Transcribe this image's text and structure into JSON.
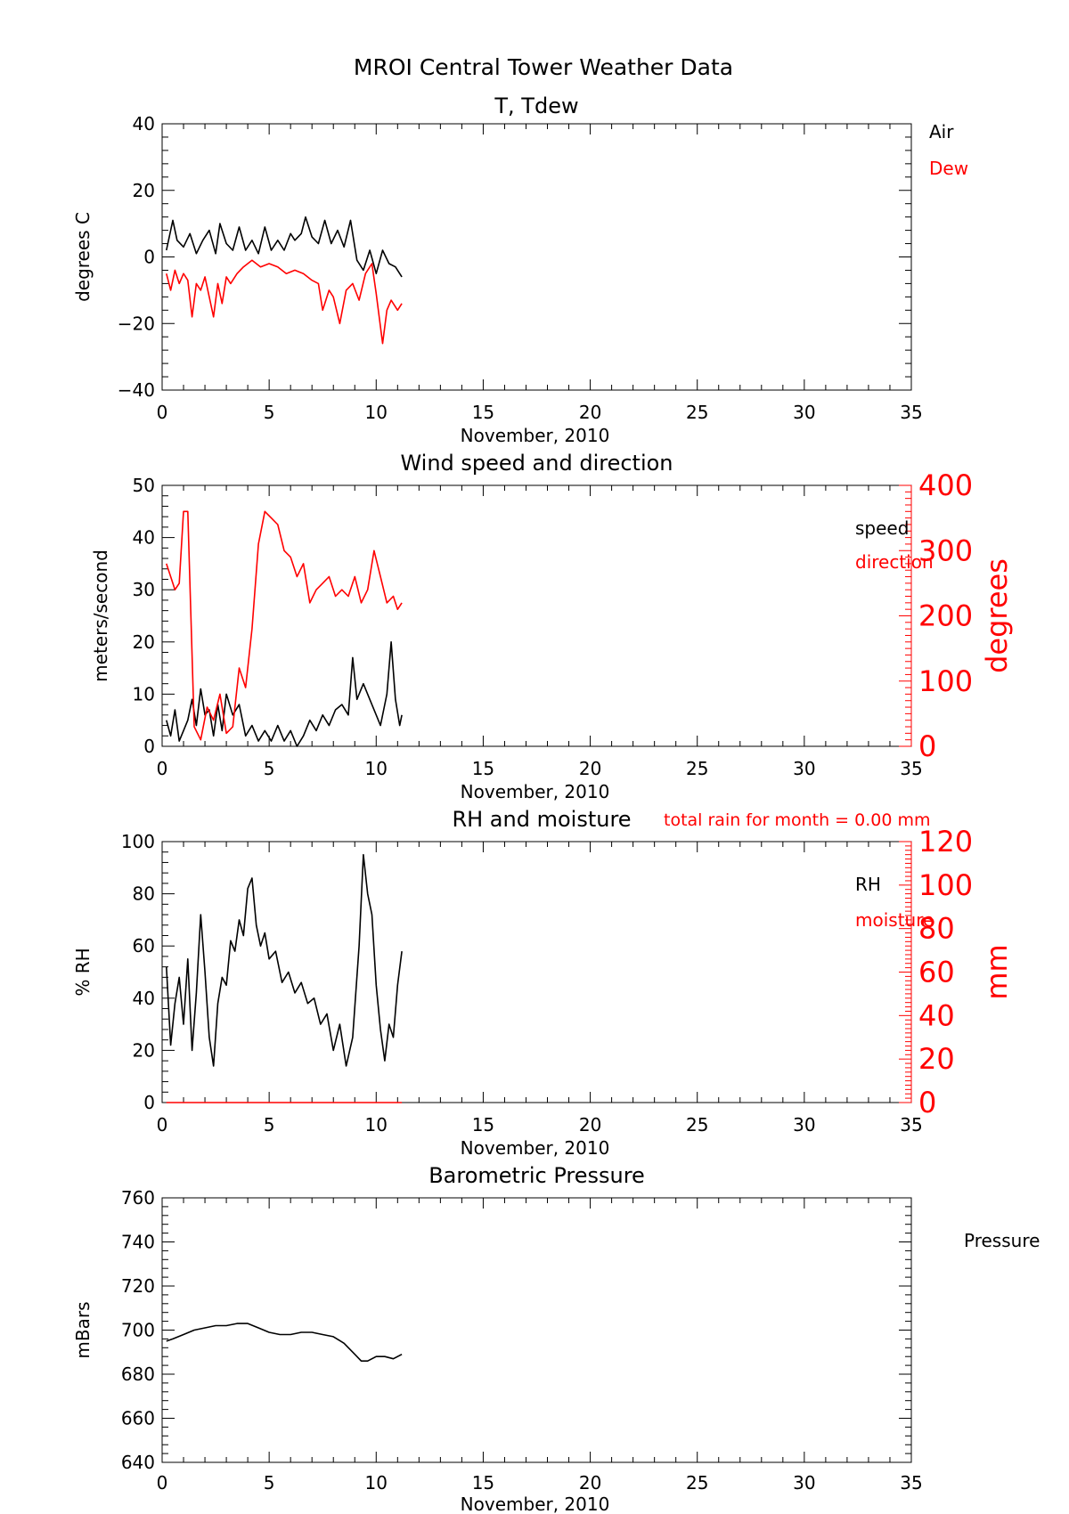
{
  "page_title": "MROI Central Tower Weather Data",
  "colors": {
    "black": "#000000",
    "red": "#ff0000"
  },
  "chart_data": [
    {
      "id": "temp",
      "type": "line",
      "title": "T, Tdew",
      "xlabel": "November, 2010",
      "ylabel": "degrees C",
      "xlim": [
        0,
        35
      ],
      "ylim": [
        -40,
        40
      ],
      "xticks": [
        "0",
        "5",
        "10",
        "15",
        "20",
        "25",
        "30",
        "35"
      ],
      "yticks": [
        "-40",
        "-20",
        "0",
        "20",
        "40"
      ],
      "legend": [
        {
          "label": "Air",
          "color": "#000000"
        },
        {
          "label": "Dew",
          "color": "#ff0000"
        }
      ],
      "series": [
        {
          "name": "Air",
          "color": "#000000",
          "x": [
            0.2,
            0.5,
            0.7,
            1.0,
            1.3,
            1.6,
            1.9,
            2.2,
            2.5,
            2.7,
            3.0,
            3.3,
            3.6,
            3.9,
            4.2,
            4.5,
            4.8,
            5.1,
            5.4,
            5.7,
            6.0,
            6.2,
            6.5,
            6.7,
            7.0,
            7.3,
            7.6,
            7.9,
            8.2,
            8.5,
            8.8,
            9.1,
            9.4,
            9.7,
            10.0,
            10.3,
            10.6,
            10.9,
            11.2
          ],
          "y": [
            2,
            11,
            5,
            3,
            7,
            1,
            5,
            8,
            1,
            10,
            4,
            2,
            9,
            2,
            5,
            1,
            9,
            2,
            5,
            2,
            7,
            5,
            7,
            12,
            6,
            4,
            11,
            4,
            8,
            3,
            11,
            -1,
            -4,
            2,
            -5,
            2,
            -2,
            -3,
            -6
          ]
        },
        {
          "name": "Dew",
          "color": "#ff0000",
          "x": [
            0.2,
            0.4,
            0.6,
            0.8,
            1.0,
            1.2,
            1.4,
            1.6,
            1.8,
            2.0,
            2.2,
            2.4,
            2.6,
            2.8,
            3.0,
            3.2,
            3.5,
            3.8,
            4.2,
            4.6,
            5.0,
            5.4,
            5.8,
            6.2,
            6.6,
            7.0,
            7.3,
            7.5,
            7.8,
            8.0,
            8.3,
            8.6,
            8.9,
            9.2,
            9.5,
            9.8,
            10.0,
            10.3,
            10.5,
            10.7,
            11.0,
            11.2
          ],
          "y": [
            -5,
            -10,
            -4,
            -8,
            -5,
            -7,
            -18,
            -8,
            -10,
            -6,
            -12,
            -18,
            -8,
            -14,
            -6,
            -8,
            -5,
            -3,
            -1,
            -3,
            -2,
            -3,
            -5,
            -4,
            -5,
            -7,
            -8,
            -16,
            -10,
            -12,
            -20,
            -10,
            -8,
            -13,
            -5,
            -2,
            -11,
            -26,
            -16,
            -13,
            -16,
            -14
          ]
        }
      ]
    },
    {
      "id": "wind",
      "type": "line",
      "title": "Wind speed and direction",
      "xlabel": "November, 2010",
      "ylabel": "meters/second",
      "ylabel_right": "degrees",
      "xlim": [
        0,
        35
      ],
      "ylim": [
        0,
        50
      ],
      "ylim_right": [
        0,
        400
      ],
      "xticks": [
        "0",
        "5",
        "10",
        "15",
        "20",
        "25",
        "30",
        "35"
      ],
      "yticks": [
        "0",
        "10",
        "20",
        "30",
        "40",
        "50"
      ],
      "yticks_right": [
        "0",
        "100",
        "200",
        "300",
        "400"
      ],
      "legend": [
        {
          "label": "speed",
          "color": "#000000"
        },
        {
          "label": "direction",
          "color": "#ff0000"
        }
      ],
      "series": [
        {
          "name": "speed",
          "color": "#000000",
          "x": [
            0.2,
            0.4,
            0.6,
            0.8,
            1.0,
            1.2,
            1.4,
            1.6,
            1.8,
            2.0,
            2.2,
            2.4,
            2.6,
            2.8,
            3.0,
            3.3,
            3.6,
            3.9,
            4.2,
            4.5,
            4.8,
            5.1,
            5.4,
            5.7,
            6.0,
            6.3,
            6.6,
            6.9,
            7.2,
            7.5,
            7.8,
            8.1,
            8.4,
            8.7,
            8.9,
            9.1,
            9.4,
            9.7,
            10.0,
            10.2,
            10.5,
            10.7,
            10.9,
            11.1,
            11.2
          ],
          "y": [
            5,
            2,
            7,
            1,
            3,
            5,
            9,
            4,
            11,
            6,
            7,
            2,
            8,
            3,
            10,
            6,
            8,
            2,
            4,
            1,
            3,
            1,
            4,
            1,
            3,
            0,
            2,
            5,
            3,
            6,
            4,
            7,
            8,
            6,
            17,
            9,
            12,
            9,
            6,
            4,
            10,
            20,
            9,
            4,
            6
          ]
        },
        {
          "name": "direction",
          "color": "#ff0000",
          "x": [
            0.2,
            0.4,
            0.6,
            0.8,
            1.0,
            1.2,
            1.5,
            1.8,
            2.1,
            2.4,
            2.7,
            3.0,
            3.3,
            3.6,
            3.9,
            4.2,
            4.5,
            4.8,
            5.1,
            5.4,
            5.7,
            6.0,
            6.3,
            6.6,
            6.9,
            7.2,
            7.5,
            7.8,
            8.1,
            8.4,
            8.7,
            9.0,
            9.3,
            9.6,
            9.9,
            10.2,
            10.5,
            10.8,
            11.0,
            11.2
          ],
          "y": [
            280,
            260,
            240,
            250,
            360,
            360,
            30,
            10,
            60,
            40,
            80,
            20,
            30,
            120,
            90,
            180,
            310,
            360,
            350,
            340,
            300,
            290,
            260,
            280,
            220,
            240,
            250,
            260,
            230,
            240,
            230,
            260,
            220,
            240,
            300,
            260,
            220,
            230,
            210,
            220
          ]
        }
      ]
    },
    {
      "id": "rh",
      "type": "line",
      "title": "RH and moisture",
      "annotation": "total rain for month =      0.00 mm",
      "xlabel": "November, 2010",
      "ylabel": "% RH",
      "ylabel_right": "mm",
      "xlim": [
        0,
        35
      ],
      "ylim": [
        0,
        100
      ],
      "ylim_right": [
        0,
        120
      ],
      "xticks": [
        "0",
        "5",
        "10",
        "15",
        "20",
        "25",
        "30",
        "35"
      ],
      "yticks": [
        "0",
        "20",
        "40",
        "60",
        "80",
        "100"
      ],
      "yticks_right": [
        "0",
        "20",
        "40",
        "60",
        "80",
        "100",
        "120"
      ],
      "legend": [
        {
          "label": "RH",
          "color": "#000000"
        },
        {
          "label": "moisture",
          "color": "#ff0000"
        }
      ],
      "series": [
        {
          "name": "RH",
          "color": "#000000",
          "x": [
            0.2,
            0.4,
            0.6,
            0.8,
            1.0,
            1.2,
            1.4,
            1.6,
            1.8,
            2.0,
            2.2,
            2.4,
            2.6,
            2.8,
            3.0,
            3.2,
            3.4,
            3.6,
            3.8,
            4.0,
            4.2,
            4.4,
            4.6,
            4.8,
            5.0,
            5.3,
            5.6,
            5.9,
            6.2,
            6.5,
            6.8,
            7.1,
            7.4,
            7.7,
            8.0,
            8.3,
            8.6,
            8.9,
            9.2,
            9.4,
            9.6,
            9.8,
            10.0,
            10.2,
            10.4,
            10.6,
            10.8,
            11.0,
            11.2
          ],
          "y": [
            52,
            22,
            38,
            48,
            30,
            55,
            20,
            42,
            72,
            50,
            25,
            14,
            38,
            48,
            45,
            62,
            58,
            70,
            64,
            82,
            86,
            68,
            60,
            65,
            55,
            58,
            46,
            50,
            42,
            46,
            38,
            40,
            30,
            34,
            20,
            30,
            14,
            25,
            60,
            95,
            80,
            72,
            45,
            28,
            16,
            30,
            25,
            45,
            58
          ]
        },
        {
          "name": "moisture",
          "color": "#ff0000",
          "x": [
            0.2,
            11.2
          ],
          "y": [
            0,
            0
          ]
        }
      ]
    },
    {
      "id": "pressure",
      "type": "line",
      "title": "Barometric Pressure",
      "xlabel": "November, 2010",
      "ylabel": "mBars",
      "xlim": [
        0,
        35
      ],
      "ylim": [
        640,
        760
      ],
      "xticks": [
        "0",
        "5",
        "10",
        "15",
        "20",
        "25",
        "30",
        "35"
      ],
      "yticks": [
        "640",
        "660",
        "680",
        "700",
        "720",
        "740",
        "760"
      ],
      "legend": [
        {
          "label": "Pressure",
          "color": "#000000"
        }
      ],
      "series": [
        {
          "name": "Pressure",
          "color": "#000000",
          "x": [
            0.2,
            0.5,
            1.0,
            1.5,
            2.0,
            2.5,
            3.0,
            3.5,
            4.0,
            4.5,
            5.0,
            5.5,
            6.0,
            6.5,
            7.0,
            7.5,
            8.0,
            8.5,
            9.0,
            9.3,
            9.6,
            10.0,
            10.4,
            10.8,
            11.2
          ],
          "y": [
            695,
            696,
            698,
            700,
            701,
            702,
            702,
            703,
            703,
            701,
            699,
            698,
            698,
            699,
            699,
            698,
            697,
            694,
            689,
            686,
            686,
            688,
            688,
            687,
            689
          ]
        }
      ]
    }
  ]
}
